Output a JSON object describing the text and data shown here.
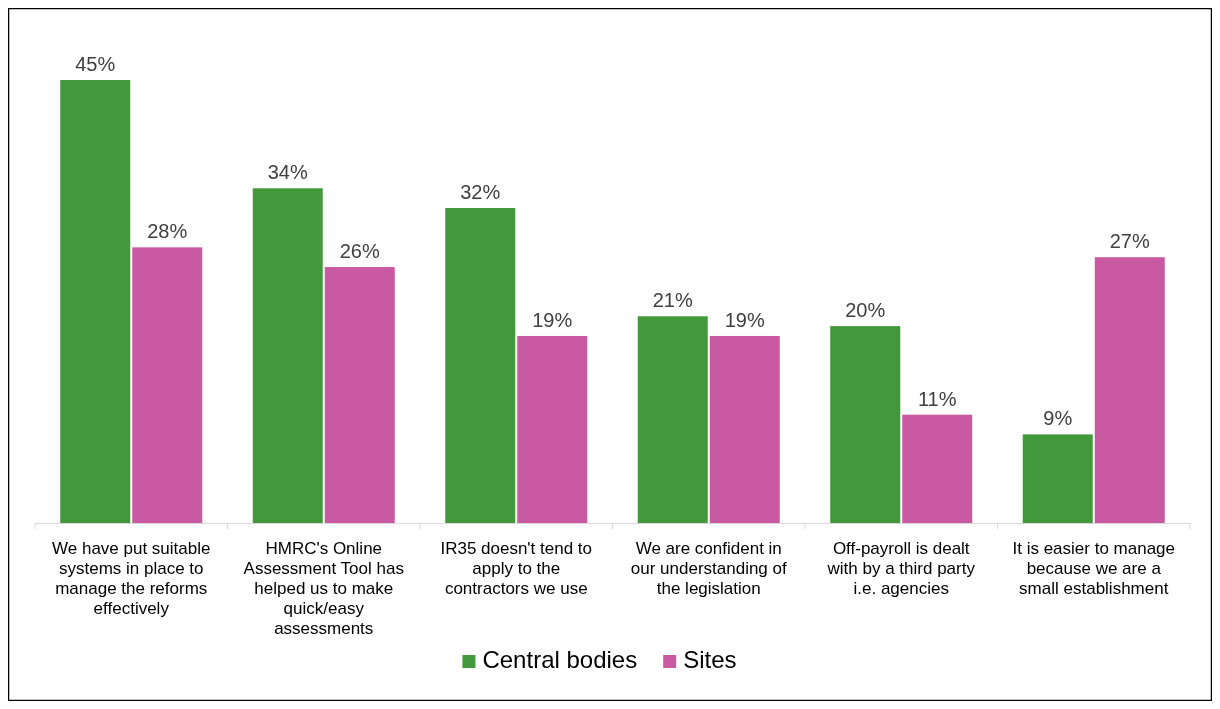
{
  "chart_data": {
    "type": "bar",
    "categories": [
      "We have put suitable systems in place to manage the reforms effectively",
      "HMRC's Online Assessment Tool has helped us to make quick/easy assessments",
      "IR35 doesn't tend to apply to the contractors we use",
      "We are confident in our understanding of the legislation",
      "Off-payroll is dealt with by a third party i.e. agencies",
      "It is easier to manage because we are a small establishment"
    ],
    "series": [
      {
        "name": "Central bodies",
        "color": "#43983b",
        "values": [
          45,
          34,
          32,
          21,
          20,
          9
        ],
        "value_labels": [
          "45%",
          "34%",
          "32%",
          "21%",
          "20%",
          "9%"
        ]
      },
      {
        "name": "Sites",
        "color": "#c95aa2",
        "values": [
          28,
          26,
          19,
          19,
          11,
          27
        ],
        "value_labels": [
          "28%",
          "26%",
          "19%",
          "19%",
          "11%",
          "27%"
        ]
      }
    ],
    "legend": "bottom",
    "grid": false
  }
}
